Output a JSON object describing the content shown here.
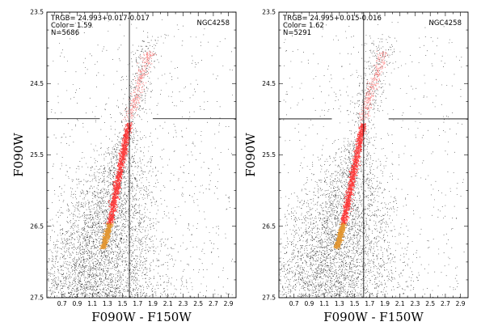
{
  "chart_data": [
    {
      "type": "scatter",
      "title": "NGC4258",
      "xlabel": "F090W - F150W",
      "ylabel": "F090W",
      "xlim": [
        0.5,
        3.0
      ],
      "ylim": [
        27.5,
        23.5
      ],
      "y_inverted": true,
      "x_ticks": [
        "0.7",
        "0.9",
        "1.1",
        "1.3",
        "1.5",
        "1.7",
        "1.9",
        "2.1",
        "2.3",
        "2.5",
        "2.7",
        "2.9"
      ],
      "y_ticks": [
        "23.5",
        "24.5",
        "25.5",
        "26.5",
        "27.5"
      ],
      "annotations": [
        "TRGB= 24.993+0.017-0.017",
        "Color= 1.59",
        "N=5686"
      ],
      "trgb_mag": 24.993,
      "trgb_color": 1.59,
      "n_stars": 5686,
      "crosshair_gap": [
        1.2,
        1.9
      ],
      "series": [
        {
          "role": "field stars",
          "color": "#000000",
          "count": 5000,
          "rgb_track": [
            [
              1.25,
              26.8
            ],
            [
              1.59,
              24.99
            ]
          ],
          "agb_track": [
            [
              1.59,
              24.99
            ],
            [
              1.85,
              23.9
            ]
          ]
        },
        {
          "role": "rgb highlight",
          "color": "#ff2a2a",
          "segment": [
            [
              1.33,
              26.45
            ],
            [
              1.58,
              25.05
            ]
          ]
        },
        {
          "role": "agb highlight",
          "color": "#ff6a6a",
          "segment": [
            [
              1.58,
              25.0
            ],
            [
              1.85,
              24.05
            ]
          ]
        },
        {
          "role": "faint rgb",
          "color": "#e3942b",
          "segment": [
            [
              1.24,
              26.8
            ],
            [
              1.33,
              26.45
            ]
          ]
        }
      ]
    },
    {
      "type": "scatter",
      "title": "NGC4258",
      "xlabel": "F090W - F150W",
      "ylabel": "F090W",
      "xlim": [
        0.5,
        3.0
      ],
      "ylim": [
        27.5,
        23.5
      ],
      "y_inverted": true,
      "x_ticks": [
        "0.7",
        "0.9",
        "1.1",
        "1.3",
        "1.5",
        "1.7",
        "1.9",
        "2.1",
        "2.3",
        "2.5",
        "2.7",
        "2.9"
      ],
      "y_ticks": [
        "23.5",
        "24.5",
        "25.5",
        "26.5",
        "27.5"
      ],
      "annotations": [
        "TRGB= 24.995+0.015-0.016",
        "Color= 1.62",
        "N=5291"
      ],
      "trgb_mag": 24.995,
      "trgb_color": 1.62,
      "n_stars": 5291,
      "crosshair_gap": [
        1.2,
        1.95
      ],
      "series": [
        {
          "role": "field stars",
          "color": "#000000",
          "count": 4700,
          "rgb_track": [
            [
              1.27,
              26.8
            ],
            [
              1.62,
              24.99
            ]
          ],
          "agb_track": [
            [
              1.62,
              24.99
            ],
            [
              1.88,
              23.9
            ]
          ]
        },
        {
          "role": "rgb highlight",
          "color": "#ff2a2a",
          "segment": [
            [
              1.35,
              26.45
            ],
            [
              1.61,
              25.05
            ]
          ]
        },
        {
          "role": "agb highlight",
          "color": "#ff6a6a",
          "segment": [
            [
              1.61,
              25.0
            ],
            [
              1.88,
              24.05
            ]
          ]
        },
        {
          "role": "faint rgb",
          "color": "#e3942b",
          "segment": [
            [
              1.26,
              26.8
            ],
            [
              1.35,
              26.45
            ]
          ]
        }
      ]
    }
  ]
}
